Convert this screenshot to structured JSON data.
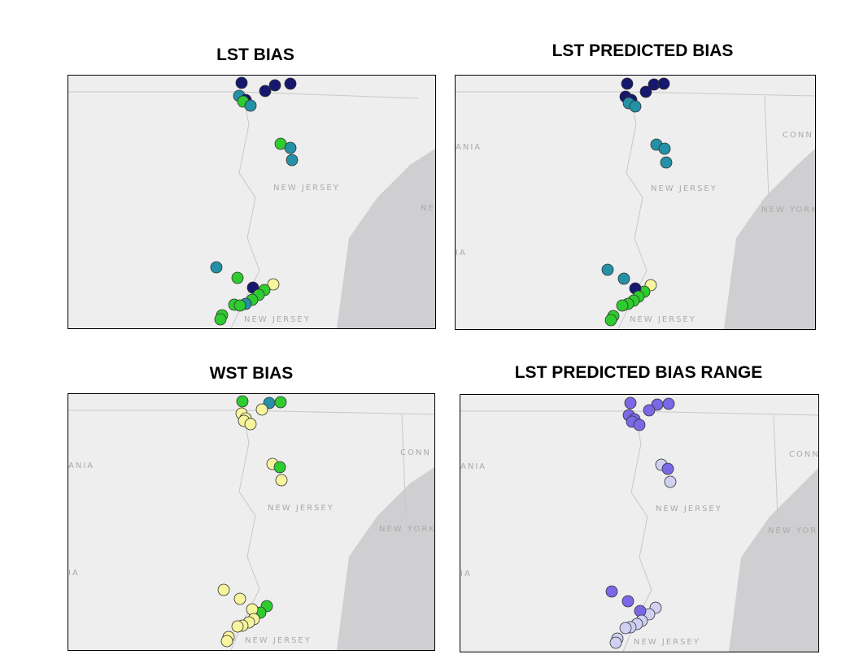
{
  "panels": [
    {
      "title": "LST BIAS",
      "labels": {
        "nj_upper": "NEW JERSEY",
        "nj_lower": "NEW JERSEY",
        "ny": "NE",
        "pa_upper": "",
        "pa_lower": "",
        "conn": ""
      }
    },
    {
      "title": "LST PREDICTED BIAS",
      "labels": {
        "nj_upper": "NEW JERSEY",
        "nj_lower": "NEW JERSEY",
        "ny": "NEW YORK",
        "pa_upper": "ANIA",
        "pa_lower": "IA",
        "conn": "CONN"
      }
    },
    {
      "title": "WST BIAS",
      "labels": {
        "nj_upper": "NEW JERSEY",
        "nj_lower": "NEW JERSEY",
        "ny": "NEW YORK",
        "pa_upper": "ANIA",
        "pa_lower": "IA",
        "conn": "CONN"
      }
    },
    {
      "title": "LST PREDICTED BIAS RANGE",
      "labels": {
        "nj_upper": "NEW JERSEY",
        "nj_lower": "NEW JERSEY",
        "ny": "NEW YOR",
        "pa_upper": "ANIA",
        "pa_lower": "IA",
        "conn": "CONN"
      }
    }
  ],
  "colors": {
    "background": "#eeeeee",
    "water": "#cfcfd1",
    "boundary": "#c8c8c8",
    "dark_navy": "#15186e",
    "teal": "#2491a6",
    "green": "#2ecc2e",
    "pale_yellow": "#f7f59e",
    "purple": "#7a68e6",
    "lavender": "#d0d1f2"
  }
}
